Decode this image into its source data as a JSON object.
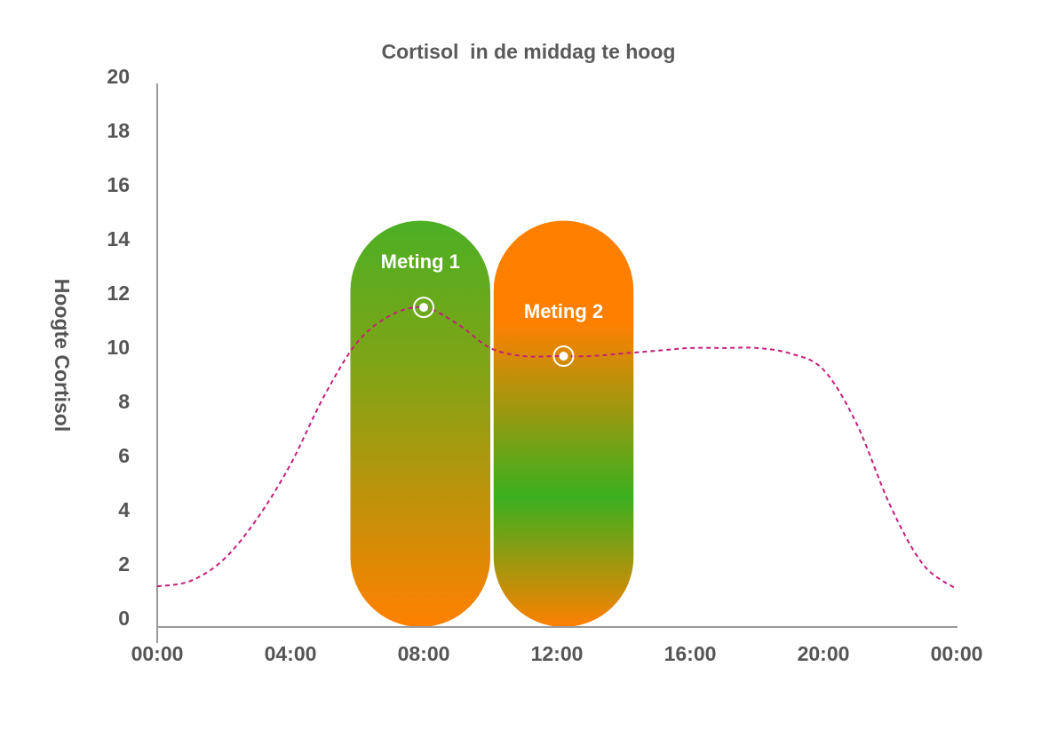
{
  "chart_data": {
    "type": "line",
    "title": "Cortisol  in de middag te hoog",
    "xlabel": "",
    "ylabel": "Hoogte Cortisol",
    "x_ticks": [
      "00:00",
      "04:00",
      "08:00",
      "12:00",
      "16:00",
      "20:00",
      "00:00"
    ],
    "x_tick_values": [
      0,
      4,
      8,
      12,
      16,
      20,
      24
    ],
    "y_ticks": [
      0,
      2,
      4,
      6,
      8,
      10,
      12,
      14,
      16,
      18,
      20
    ],
    "xlim": [
      0,
      24
    ],
    "ylim": [
      0,
      20
    ],
    "grid": false,
    "series": [
      {
        "color": "#c41e7a",
        "dashed": true,
        "x": [
          0,
          1,
          2,
          3,
          4,
          5,
          6,
          7,
          8,
          9,
          10,
          11,
          12,
          13,
          14,
          15,
          16,
          17,
          18,
          19,
          20,
          21,
          22,
          23,
          24
        ],
        "y": [
          1.5,
          1.7,
          2.5,
          4.0,
          6.0,
          8.5,
          10.5,
          11.5,
          11.8,
          11.2,
          10.3,
          10.0,
          10.0,
          10.0,
          10.1,
          10.2,
          10.3,
          10.3,
          10.3,
          10.1,
          9.5,
          7.5,
          4.5,
          2.3,
          1.4
        ]
      }
    ],
    "measurements": [
      {
        "label": "Meting 1",
        "x": 8,
        "y": 11.8,
        "band_x_range": [
          5.8,
          10.0
        ],
        "band_y_range": [
          0,
          15
        ],
        "color_top": "#4caf24",
        "color_bottom": "#ff8000"
      },
      {
        "label": "Meting 2",
        "x": 12.2,
        "y": 10.0,
        "band_x_range": [
          10.1,
          14.3
        ],
        "band_y_range": [
          0,
          15
        ],
        "color_top": "#ff8000",
        "color_middle": "#3ab01f",
        "color_bottom": "#ff8000"
      }
    ],
    "colors": {
      "axis": "#999999",
      "text": "#555555",
      "curve": "#c41e7a",
      "marker": "#ffffff"
    }
  }
}
